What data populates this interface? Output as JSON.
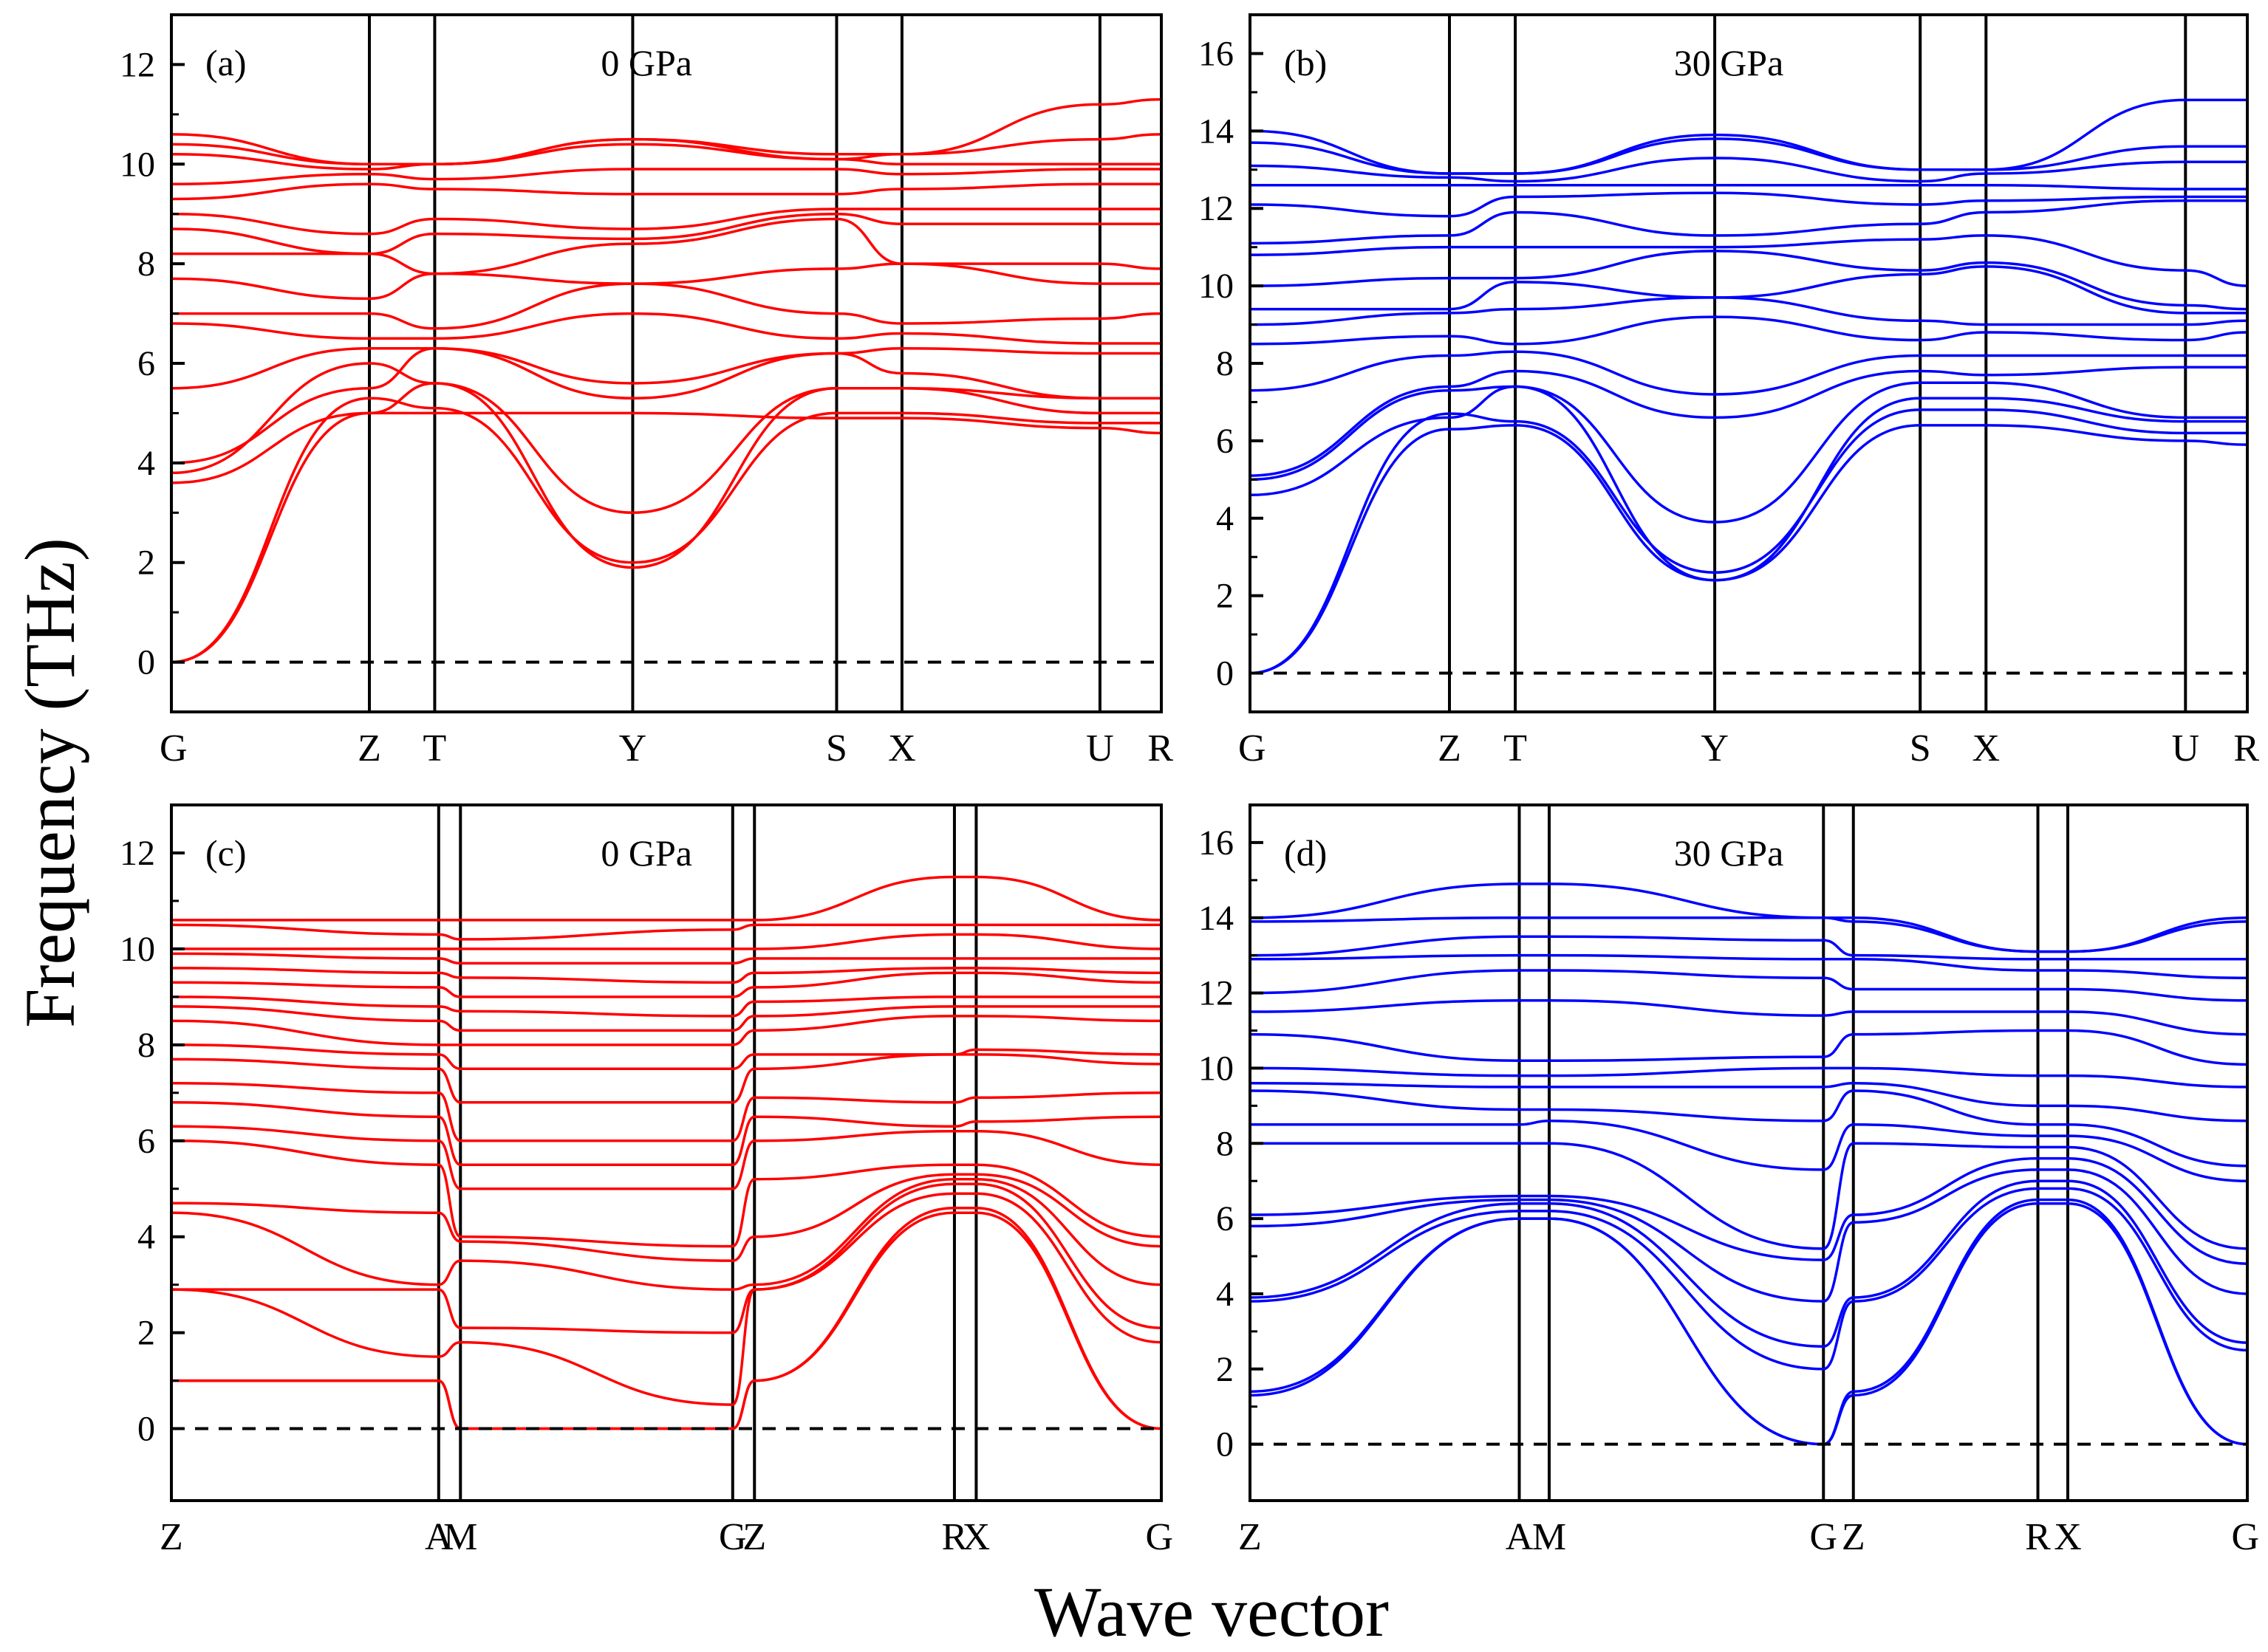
{
  "ylabel": "Frequency (THz)",
  "xlabel": "Wave vector",
  "colors": {
    "red": "#ff0000",
    "blue": "#0000ff",
    "axis": "#000000"
  },
  "chart_data": [
    {
      "type": "line",
      "panel_label": "(a)",
      "pressure": "0 GPa",
      "color": "#ff0000",
      "ylim": [
        -1,
        13
      ],
      "yticks": [
        "0",
        "2",
        "4",
        "6",
        "8",
        "10",
        "12"
      ],
      "kpoints": [
        {
          "label": "G",
          "pos": 0.0
        },
        {
          "label": "Z",
          "pos": 0.2
        },
        {
          "label": "T",
          "pos": 0.266
        },
        {
          "label": "Y",
          "pos": 0.466
        },
        {
          "label": "S",
          "pos": 0.672
        },
        {
          "label": "X",
          "pos": 0.738
        },
        {
          "label": "U",
          "pos": 0.938
        },
        {
          "label": "R",
          "pos": 1.0
        }
      ],
      "series_values": [
        [
          0,
          5.0,
          5.0,
          5.0,
          4.9,
          4.9,
          4.7,
          4.6
        ],
        [
          0,
          5.3,
          5.1,
          2.0,
          5.0,
          5.0,
          4.8,
          4.8
        ],
        [
          3.6,
          5.0,
          5.6,
          1.9,
          5.5,
          5.5,
          5.0,
          5.0
        ],
        [
          3.8,
          6.0,
          5.6,
          3.0,
          5.5,
          5.5,
          5.3,
          5.3
        ],
        [
          4.0,
          5.5,
          6.3,
          5.3,
          6.2,
          5.8,
          5.3,
          5.3
        ],
        [
          5.5,
          6.3,
          6.3,
          5.6,
          6.2,
          6.3,
          6.2,
          6.2
        ],
        [
          6.8,
          6.5,
          6.5,
          7.0,
          6.5,
          6.6,
          6.4,
          6.4
        ],
        [
          7.0,
          7.0,
          6.7,
          7.6,
          7.0,
          6.8,
          6.9,
          7.0
        ],
        [
          7.7,
          7.3,
          7.8,
          7.6,
          7.9,
          8.0,
          7.6,
          7.6
        ],
        [
          8.2,
          8.2,
          7.8,
          8.4,
          8.9,
          8.0,
          8.0,
          7.9
        ],
        [
          8.7,
          8.2,
          8.6,
          8.5,
          9.0,
          8.8,
          8.8,
          8.8
        ],
        [
          9.0,
          8.6,
          8.9,
          8.7,
          9.1,
          9.1,
          9.1,
          9.1
        ],
        [
          9.3,
          9.6,
          9.5,
          9.4,
          9.4,
          9.5,
          9.6,
          9.6
        ],
        [
          9.6,
          9.8,
          9.7,
          9.9,
          9.9,
          9.8,
          9.9,
          9.9
        ],
        [
          10.2,
          9.9,
          10.0,
          10.4,
          10.1,
          10.0,
          10.0,
          10.0
        ],
        [
          10.4,
          10.0,
          10.0,
          10.5,
          10.1,
          10.2,
          10.5,
          10.6
        ],
        [
          10.6,
          10.0,
          10.0,
          10.5,
          10.2,
          10.2,
          11.2,
          11.3
        ]
      ]
    },
    {
      "type": "line",
      "panel_label": "(b)",
      "pressure": "30 GPa",
      "color": "#0000ff",
      "ylim": [
        -1,
        17
      ],
      "yticks": [
        "0",
        "2",
        "4",
        "6",
        "8",
        "10",
        "12",
        "14",
        "16"
      ],
      "kpoints": [
        {
          "label": "G",
          "pos": 0.0
        },
        {
          "label": "Z",
          "pos": 0.2
        },
        {
          "label": "T",
          "pos": 0.266
        },
        {
          "label": "Y",
          "pos": 0.466
        },
        {
          "label": "S",
          "pos": 0.672
        },
        {
          "label": "X",
          "pos": 0.738
        },
        {
          "label": "U",
          "pos": 0.938
        },
        {
          "label": "R",
          "pos": 1.0
        }
      ],
      "series_values": [
        [
          0,
          6.3,
          6.4,
          2.4,
          6.4,
          6.4,
          6.0,
          5.9
        ],
        [
          0,
          6.7,
          6.5,
          2.6,
          6.8,
          6.8,
          6.2,
          6.2
        ],
        [
          4.6,
          6.6,
          7.4,
          2.4,
          7.1,
          7.1,
          6.5,
          6.5
        ],
        [
          5.0,
          7.3,
          7.4,
          3.9,
          7.5,
          7.5,
          6.6,
          6.6
        ],
        [
          5.1,
          7.4,
          7.8,
          6.6,
          7.8,
          7.7,
          7.9,
          7.9
        ],
        [
          7.3,
          8.2,
          8.3,
          7.2,
          8.2,
          8.2,
          8.2,
          8.2
        ],
        [
          8.5,
          8.7,
          8.5,
          9.2,
          8.6,
          8.8,
          8.6,
          8.8
        ],
        [
          9.0,
          9.3,
          9.4,
          9.7,
          9.1,
          9.0,
          9.0,
          9.1
        ],
        [
          9.4,
          9.4,
          10.1,
          9.7,
          10.3,
          10.5,
          9.3,
          9.3
        ],
        [
          10.0,
          10.2,
          10.2,
          10.9,
          10.4,
          10.6,
          9.5,
          9.4
        ],
        [
          10.8,
          11.0,
          11.0,
          11.0,
          11.2,
          11.3,
          10.4,
          10.0
        ],
        [
          11.1,
          11.3,
          11.9,
          11.3,
          11.6,
          11.9,
          12.2,
          12.2
        ],
        [
          12.1,
          11.8,
          12.3,
          12.4,
          12.1,
          12.2,
          12.3,
          12.3
        ],
        [
          12.6,
          12.6,
          12.6,
          12.6,
          12.6,
          12.6,
          12.5,
          12.5
        ],
        [
          13.1,
          12.8,
          12.7,
          13.3,
          12.7,
          12.9,
          13.2,
          13.2
        ],
        [
          13.7,
          12.9,
          12.9,
          13.8,
          13.0,
          13.0,
          13.6,
          13.6
        ],
        [
          14.0,
          12.9,
          12.9,
          13.9,
          13.0,
          13.0,
          14.8,
          14.8
        ]
      ]
    },
    {
      "type": "line",
      "panel_label": "(c)",
      "pressure": "0 GPa",
      "color": "#ff0000",
      "ylim": [
        -1.5,
        13
      ],
      "yticks": [
        "0",
        "2",
        "4",
        "6",
        "8",
        "10",
        "12"
      ],
      "kpoints": [
        {
          "label": "Z",
          "pos": 0.0
        },
        {
          "label": "A",
          "pos": 0.27
        },
        {
          "label": "M",
          "pos": 0.292
        },
        {
          "label": "G",
          "pos": 0.567
        },
        {
          "label": "Z",
          "pos": 0.589
        },
        {
          "label": "R",
          "pos": 0.791
        },
        {
          "label": "X",
          "pos": 0.813
        },
        {
          "label": "G",
          "pos": 1.0
        }
      ],
      "series_values": [
        [
          1.0,
          1.0,
          0,
          0,
          1.0,
          4.5,
          4.5,
          0
        ],
        [
          1.0,
          1.0,
          0,
          0,
          1.0,
          4.6,
          4.6,
          0
        ],
        [
          2.9,
          1.5,
          1.8,
          0.5,
          2.9,
          4.9,
          4.9,
          1.8
        ],
        [
          2.9,
          2.9,
          2.1,
          2.0,
          2.9,
          5.1,
          5.1,
          2.1
        ],
        [
          4.5,
          3.0,
          3.5,
          2.9,
          3.0,
          5.2,
          5.2,
          3.0
        ],
        [
          4.7,
          4.5,
          3.9,
          3.5,
          4.0,
          5.3,
          5.3,
          3.8
        ],
        [
          6.0,
          5.5,
          4.0,
          3.8,
          5.2,
          5.5,
          5.5,
          4.0
        ],
        [
          6.3,
          6.0,
          5.0,
          5.0,
          6.0,
          6.2,
          6.2,
          5.5
        ],
        [
          6.8,
          6.5,
          5.5,
          5.5,
          6.5,
          6.3,
          6.4,
          6.5
        ],
        [
          7.2,
          7.0,
          6.0,
          6.0,
          6.9,
          6.8,
          6.9,
          7.0
        ],
        [
          7.7,
          7.5,
          6.8,
          6.8,
          7.5,
          7.8,
          7.8,
          7.6
        ],
        [
          8.0,
          7.8,
          7.5,
          7.5,
          7.8,
          7.8,
          7.9,
          7.8
        ],
        [
          8.5,
          8.0,
          8.0,
          8.0,
          8.3,
          8.6,
          8.6,
          8.5
        ],
        [
          8.8,
          8.5,
          8.3,
          8.3,
          8.6,
          8.8,
          8.8,
          8.8
        ],
        [
          9.0,
          8.8,
          8.7,
          8.6,
          8.9,
          9.0,
          9.0,
          9.0
        ],
        [
          9.3,
          9.2,
          9.0,
          9.0,
          9.2,
          9.5,
          9.5,
          9.3
        ],
        [
          9.6,
          9.5,
          9.4,
          9.3,
          9.5,
          9.6,
          9.6,
          9.5
        ],
        [
          9.9,
          9.8,
          9.7,
          9.7,
          9.8,
          9.8,
          9.8,
          9.8
        ],
        [
          10.0,
          10.0,
          10.0,
          10.0,
          10.0,
          10.3,
          10.3,
          10.0
        ],
        [
          10.5,
          10.3,
          10.2,
          10.4,
          10.5,
          10.5,
          10.5,
          10.5
        ],
        [
          10.6,
          10.6,
          10.6,
          10.6,
          10.6,
          11.5,
          11.5,
          10.6
        ]
      ]
    },
    {
      "type": "line",
      "panel_label": "(d)",
      "pressure": "30 GPa",
      "color": "#0000ff",
      "ylim": [
        -1.5,
        17
      ],
      "yticks": [
        "0",
        "2",
        "4",
        "6",
        "8",
        "10",
        "12",
        "14",
        "16"
      ],
      "kpoints": [
        {
          "label": "Z",
          "pos": 0.0
        },
        {
          "label": "A",
          "pos": 0.27
        },
        {
          "label": "M",
          "pos": 0.3
        },
        {
          "label": "G",
          "pos": 0.575
        },
        {
          "label": "Z",
          "pos": 0.605
        },
        {
          "label": "R",
          "pos": 0.79
        },
        {
          "label": "X",
          "pos": 0.82
        },
        {
          "label": "G",
          "pos": 1.0
        }
      ],
      "series_values": [
        [
          1.3,
          6.0,
          6.0,
          0,
          1.3,
          6.4,
          6.4,
          0
        ],
        [
          1.4,
          6.0,
          6.0,
          0,
          1.4,
          6.5,
          6.5,
          0
        ],
        [
          3.8,
          6.2,
          6.2,
          2.0,
          3.8,
          6.8,
          6.8,
          2.5
        ],
        [
          3.9,
          6.4,
          6.4,
          2.6,
          3.9,
          7.0,
          7.0,
          2.7
        ],
        [
          5.8,
          6.5,
          6.5,
          3.8,
          5.9,
          7.3,
          7.3,
          4.0
        ],
        [
          6.1,
          6.6,
          6.6,
          4.9,
          6.1,
          7.6,
          7.6,
          4.8
        ],
        [
          8.0,
          8.0,
          8.0,
          5.2,
          8.0,
          7.9,
          7.9,
          5.2
        ],
        [
          8.5,
          8.5,
          8.6,
          7.3,
          8.5,
          8.2,
          8.2,
          7.0
        ],
        [
          9.4,
          8.9,
          8.9,
          8.6,
          9.4,
          8.5,
          8.5,
          7.4
        ],
        [
          9.6,
          9.5,
          9.5,
          9.5,
          9.6,
          9.0,
          9.0,
          8.6
        ],
        [
          10.0,
          9.8,
          9.8,
          10.0,
          10.0,
          9.8,
          9.8,
          9.5
        ],
        [
          10.9,
          10.2,
          10.2,
          10.3,
          10.9,
          11.0,
          11.0,
          10.1
        ],
        [
          11.5,
          11.8,
          11.8,
          11.4,
          11.5,
          11.5,
          11.5,
          10.9
        ],
        [
          12.0,
          12.6,
          12.6,
          12.4,
          12.1,
          12.1,
          12.1,
          11.8
        ],
        [
          12.9,
          13.0,
          13.0,
          12.9,
          12.9,
          12.6,
          12.6,
          12.4
        ],
        [
          13.0,
          13.5,
          13.5,
          13.4,
          13.0,
          12.9,
          12.9,
          12.9
        ],
        [
          13.9,
          14.0,
          14.0,
          14.0,
          13.9,
          13.1,
          13.1,
          13.9
        ],
        [
          14.0,
          14.9,
          14.9,
          14.0,
          14.0,
          13.1,
          13.1,
          14.0
        ]
      ]
    }
  ]
}
